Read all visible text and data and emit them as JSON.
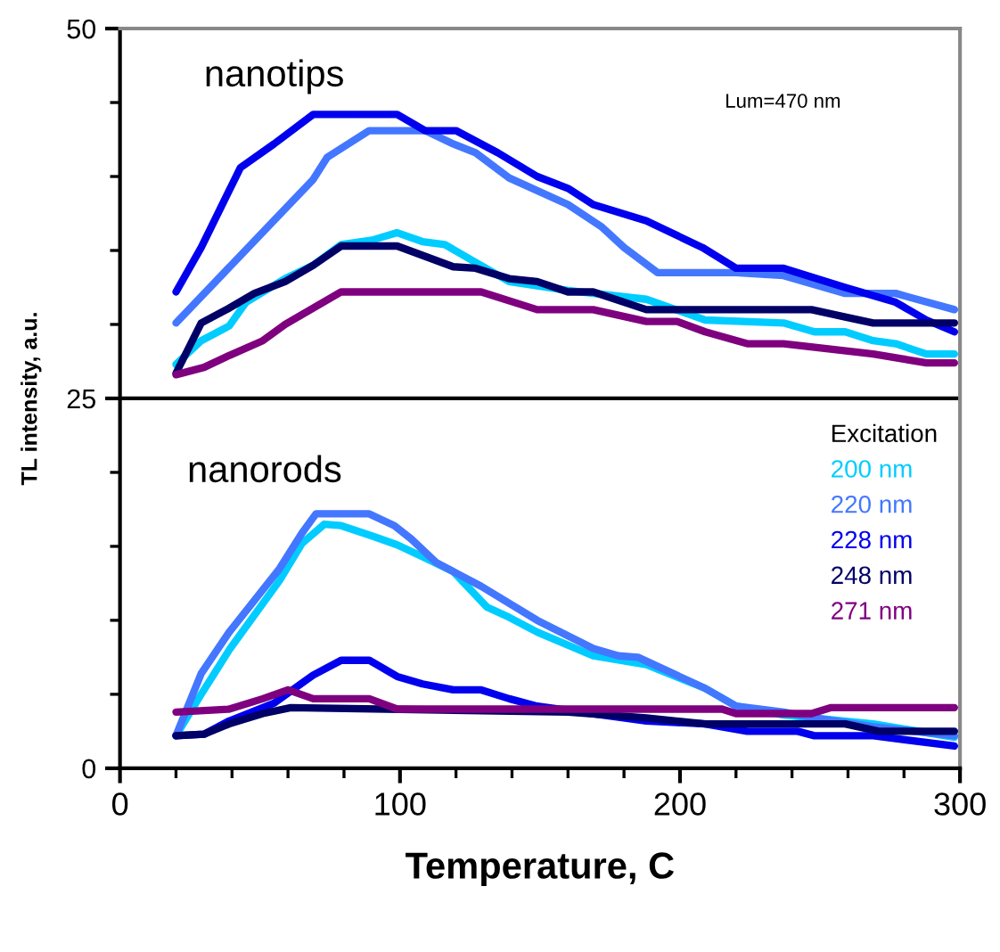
{
  "chart_data": {
    "type": "line",
    "xlabel": "Temperature, C",
    "ylabel": "TL intensity, a.u.",
    "legend_title": "Excitation",
    "legend": "right",
    "grid": false,
    "marker": "none",
    "line_style": "solid",
    "xlim": [
      0,
      300
    ],
    "xticks": [
      0,
      {
        "value": 20,
        "label": null
      },
      {
        "value": 40,
        "label": null
      },
      {
        "value": 60,
        "label": null
      },
      {
        "value": 80,
        "label": null
      },
      100,
      {
        "value": 120,
        "label": null
      },
      {
        "value": 140,
        "label": null
      },
      {
        "value": 160,
        "label": null
      },
      {
        "value": 180,
        "label": null
      },
      200,
      {
        "value": 220,
        "label": null
      },
      {
        "value": 240,
        "label": null
      },
      {
        "value": 260,
        "label": null
      },
      {
        "value": 280,
        "label": null
      },
      300
    ],
    "ylim": [
      0,
      50
    ],
    "yticks": [
      0,
      {
        "value": 5,
        "label": null
      },
      {
        "value": 10,
        "label": null
      },
      {
        "value": 15,
        "label": null
      },
      {
        "value": 20,
        "label": null
      },
      25,
      {
        "value": 30,
        "label": null
      },
      {
        "value": 35,
        "label": null
      },
      {
        "value": 40,
        "label": null
      },
      {
        "value": 45,
        "label": null
      },
      50
    ],
    "ref_lines": [
      {
        "axis": "y",
        "value": 25,
        "color": "#000000"
      }
    ],
    "annotations": [
      "nanotips",
      "Lum=470 nm",
      "nanorods"
    ],
    "series": [
      {
        "name": "200 nm",
        "color": "#00ccff",
        "x": [
          20,
          29,
          39,
          45,
          59,
          69,
          79,
          90,
          99,
          108,
          116,
          127,
          139,
          160,
          188,
          209,
          237,
          248,
          259,
          269,
          277,
          288,
          298
        ],
        "values": [
          27.3,
          28.9,
          29.9,
          31.5,
          33.1,
          34.0,
          35.4,
          35.7,
          36.2,
          35.6,
          35.4,
          34.2,
          32.9,
          32.3,
          31.7,
          30.3,
          30.1,
          29.5,
          29.5,
          28.9,
          28.7,
          28.0,
          28.0
        ]
      },
      {
        "name": "220 nm",
        "color": "#4477ff",
        "x": [
          20,
          69,
          74,
          89,
          109,
          119,
          127,
          139,
          160,
          172,
          180,
          192,
          220,
          237,
          259,
          277,
          298
        ],
        "values": [
          30.1,
          39.8,
          41.3,
          43.1,
          43.1,
          42.2,
          41.6,
          39.9,
          38.1,
          36.6,
          35.2,
          33.5,
          33.5,
          33.3,
          32.1,
          32.1,
          31.0
        ]
      },
      {
        "name": "228 nm",
        "color": "#0000ee",
        "x": [
          20,
          29,
          43,
          55,
          69,
          99,
          109,
          120,
          135,
          149,
          160,
          169,
          188,
          208,
          220,
          237,
          259,
          277,
          288,
          298
        ],
        "values": [
          32.2,
          35.2,
          40.6,
          42.2,
          44.2,
          44.2,
          43.1,
          43.1,
          41.6,
          40.0,
          39.2,
          38.1,
          37.0,
          35.2,
          33.8,
          33.8,
          32.5,
          31.5,
          30.3,
          29.5
        ]
      },
      {
        "name": "248 nm",
        "color": "#000066",
        "x": [
          20,
          29,
          39,
          48,
          59,
          69,
          79,
          99,
          119,
          127,
          139,
          149,
          160,
          169,
          188,
          247,
          259,
          269,
          298
        ],
        "values": [
          26.7,
          30.1,
          31.1,
          32.1,
          32.9,
          34.0,
          35.3,
          35.3,
          33.9,
          33.8,
          33.1,
          32.9,
          32.2,
          32.2,
          31.0,
          31.0,
          30.5,
          30.1,
          30.1
        ]
      },
      {
        "name": "271 nm",
        "color": "#7f007f",
        "x": [
          20,
          30,
          39,
          51,
          59,
          69,
          79,
          129,
          149,
          169,
          188,
          199,
          209,
          224,
          237,
          269,
          288,
          298
        ],
        "values": [
          26.6,
          27.1,
          27.9,
          28.9,
          30.0,
          31.1,
          32.2,
          32.2,
          31.0,
          31.0,
          30.2,
          30.2,
          29.5,
          28.7,
          28.7,
          28.0,
          27.4,
          27.4
        ]
      },
      {
        "color": "#00ccff",
        "x": [
          20,
          29,
          39,
          57,
          65,
          73,
          79,
          90,
          99,
          108,
          119,
          131,
          139,
          149,
          169,
          188,
          209,
          220,
          237,
          269,
          298
        ],
        "values": [
          2.2,
          5.0,
          8.0,
          12.7,
          15.2,
          16.5,
          16.4,
          15.7,
          15.1,
          14.3,
          13.3,
          10.9,
          10.2,
          9.2,
          7.6,
          7.0,
          5.4,
          4.2,
          3.6,
          3.0,
          2.1
        ]
      },
      {
        "color": "#4477ff",
        "x": [
          20,
          29,
          39,
          57,
          65,
          70,
          89,
          98,
          104,
          113,
          129,
          149,
          169,
          178,
          185,
          209,
          220,
          237,
          248,
          269,
          298
        ],
        "values": [
          2.2,
          6.4,
          9.2,
          13.5,
          15.9,
          17.2,
          17.2,
          16.4,
          15.5,
          13.9,
          12.3,
          10.0,
          8.1,
          7.6,
          7.5,
          5.4,
          4.2,
          3.8,
          3.4,
          2.8,
          2.2
        ]
      },
      {
        "color": "#0000ee",
        "x": [
          20,
          30,
          39,
          55,
          69,
          79,
          89,
          99,
          108,
          119,
          129,
          139,
          149,
          188,
          209,
          224,
          242,
          248,
          269,
          298
        ],
        "values": [
          2.2,
          2.3,
          3.2,
          4.4,
          6.3,
          7.3,
          7.3,
          6.2,
          5.7,
          5.3,
          5.3,
          4.7,
          4.2,
          3.2,
          3.0,
          2.5,
          2.5,
          2.2,
          2.2,
          1.5
        ]
      },
      {
        "color": "#000066",
        "x": [
          20,
          30,
          39,
          51,
          61,
          160,
          188,
          209,
          259,
          271,
          298
        ],
        "values": [
          2.2,
          2.3,
          3.0,
          3.7,
          4.1,
          3.8,
          3.4,
          3.0,
          3.0,
          2.5,
          2.5
        ]
      },
      {
        "color": "#7f007f",
        "x": [
          20,
          39,
          51,
          60,
          69,
          89,
          99,
          215,
          220,
          247,
          254,
          298
        ],
        "values": [
          3.8,
          4.0,
          4.7,
          5.3,
          4.7,
          4.7,
          4.0,
          4.0,
          3.7,
          3.7,
          4.1,
          4.1
        ]
      }
    ]
  }
}
